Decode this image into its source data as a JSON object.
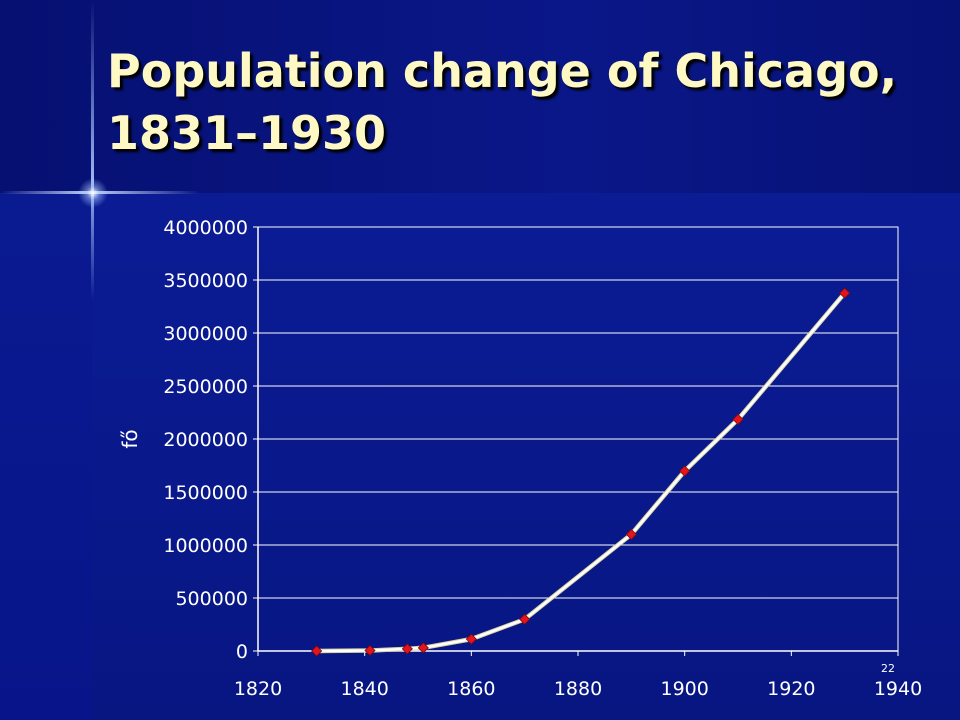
{
  "slide": {
    "title": "Population change of Chicago, 1831–1930",
    "slide_number": "22"
  },
  "colors": {
    "background": "#0c1c9a",
    "title_text": "#fdf8c4",
    "axis_text": "#ffffff",
    "gridline": "#ffffff",
    "line": "#ffffff",
    "marker": "#e3141b"
  },
  "chart_data": {
    "type": "line",
    "title": "",
    "xlabel": "",
    "ylabel": "fő",
    "xlim": [
      1820,
      1940
    ],
    "ylim": [
      0,
      4000000
    ],
    "x_ticks": [
      1820,
      1840,
      1860,
      1880,
      1900,
      1920,
      1940
    ],
    "y_ticks": [
      0,
      500000,
      1000000,
      1500000,
      2000000,
      2500000,
      3000000,
      3500000,
      4000000
    ],
    "grid": "horizontal",
    "legend": "none",
    "marker": "diamond",
    "series": [
      {
        "x": [
          1831,
          1841,
          1848,
          1851,
          1860,
          1870,
          1890,
          1900,
          1910,
          1930
        ],
        "y": [
          100,
          5000,
          20000,
          30000,
          112000,
          299000,
          1100000,
          1698000,
          2185000,
          3376000
        ]
      }
    ]
  }
}
